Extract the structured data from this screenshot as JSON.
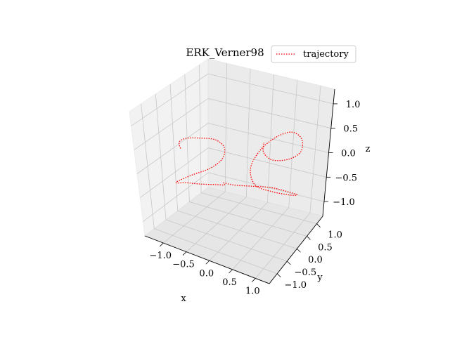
{
  "chart_data": {
    "type": "line3d",
    "title": "ERK_Verner98",
    "xlabel": "x",
    "ylabel": "y",
    "zlabel": "z",
    "xlim": [
      -1.4,
      1.3
    ],
    "ylim": [
      -1.4,
      1.3
    ],
    "zlim": [
      -1.3,
      1.3
    ],
    "xticks": [
      "−1.0",
      "−0.5",
      "0.0",
      "0.5",
      "1.0"
    ],
    "yticks": [
      "−1.0",
      "−0.5",
      "0.0",
      "0.5",
      "1.0"
    ],
    "zticks": [
      "−1.0",
      "−0.5",
      "0.0",
      "0.5",
      "1.0"
    ],
    "grid": true,
    "legend": {
      "position": "top-right",
      "entries": [
        "trajectory"
      ]
    },
    "series": [
      {
        "name": "trajectory",
        "color": "#ff0000",
        "linestyle": "dotted",
        "points": [
          [
            -0.9,
            -0.6,
            0.35
          ],
          [
            -1.1,
            -0.3,
            0.3
          ],
          [
            -1.15,
            0.0,
            0.25
          ],
          [
            -1.0,
            0.25,
            0.2
          ],
          [
            -0.7,
            0.35,
            0.2
          ],
          [
            -0.45,
            0.25,
            0.15
          ],
          [
            -0.35,
            0.0,
            0.05
          ],
          [
            -0.45,
            -0.3,
            -0.05
          ],
          [
            -0.7,
            -0.55,
            -0.15
          ],
          [
            -0.95,
            -0.65,
            -0.3
          ],
          [
            -1.1,
            -0.5,
            -0.45
          ],
          [
            -1.05,
            -0.2,
            -0.55
          ],
          [
            -0.85,
            0.0,
            -0.6
          ],
          [
            -0.55,
            0.05,
            -0.55
          ],
          [
            -0.3,
            -0.05,
            -0.45
          ],
          [
            -0.2,
            -0.25,
            -0.3
          ],
          [
            0.1,
            -0.4,
            -0.2
          ],
          [
            0.45,
            -0.35,
            -0.15
          ],
          [
            0.8,
            -0.2,
            -0.15
          ],
          [
            1.05,
            0.0,
            -0.25
          ],
          [
            1.15,
            0.25,
            -0.4
          ],
          [
            0.95,
            0.35,
            -0.5
          ],
          [
            0.6,
            0.2,
            -0.45
          ],
          [
            0.35,
            0.0,
            -0.3
          ],
          [
            0.2,
            0.1,
            -0.05
          ],
          [
            0.25,
            0.4,
            0.2
          ],
          [
            0.45,
            0.65,
            0.4
          ],
          [
            0.7,
            0.8,
            0.5
          ],
          [
            0.95,
            0.75,
            0.45
          ],
          [
            1.05,
            0.55,
            0.3
          ],
          [
            0.9,
            0.35,
            0.2
          ],
          [
            0.6,
            0.25,
            0.15
          ],
          [
            0.35,
            0.35,
            0.2
          ],
          [
            0.25,
            0.55,
            0.3
          ]
        ]
      }
    ]
  }
}
